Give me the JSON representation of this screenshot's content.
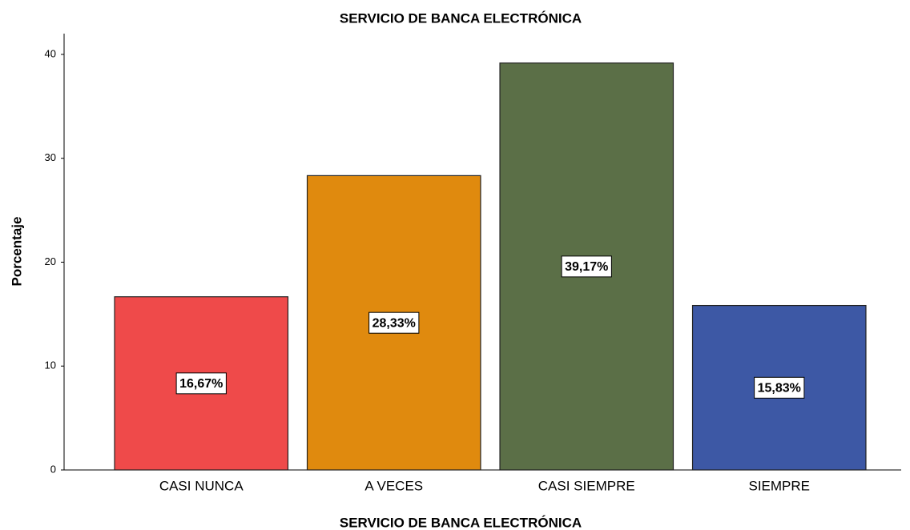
{
  "chart_data": {
    "type": "bar",
    "title": "SERVICIO DE BANCA ELECTRÓNICA",
    "x_label": "SERVICIO DE BANCA ELECTRÓNICA",
    "y_label": "Porcentaje",
    "categories": [
      "CASI NUNCA",
      "A VECES",
      "CASI SIEMPRE",
      "SIEMPRE"
    ],
    "values": [
      16.67,
      28.33,
      39.17,
      15.83
    ],
    "value_labels": [
      "16,67%",
      "28,33%",
      "39,17%",
      "15,83%"
    ],
    "colors": [
      "#ef4a4a",
      "#e08a0e",
      "#5b6f47",
      "#3d58a5"
    ],
    "ylim": [
      0,
      42
    ],
    "yticks": [
      0,
      10,
      20,
      30,
      40
    ],
    "grid": false
  }
}
